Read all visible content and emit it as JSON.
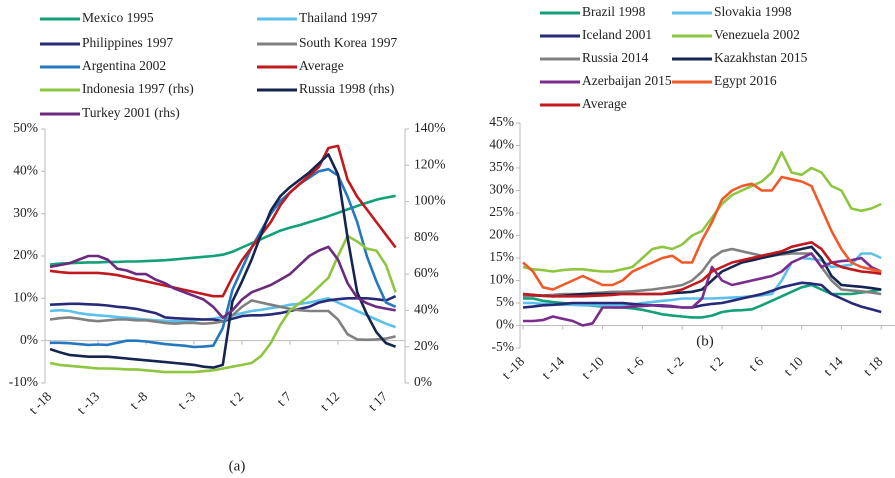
{
  "chart_data": [
    {
      "type": "line",
      "caption": "(a)",
      "categories": [
        "t -18",
        null,
        null,
        null,
        null,
        "t -13",
        null,
        null,
        null,
        null,
        "t -8",
        null,
        null,
        null,
        null,
        "t -3",
        null,
        null,
        null,
        null,
        "t 2",
        null,
        null,
        null,
        null,
        "t 7",
        null,
        null,
        null,
        null,
        "t 12",
        null,
        null,
        null,
        null,
        "t 17",
        null
      ],
      "ylim": [
        -10,
        50
      ],
      "yticks": [
        {
          "value": -10,
          "label": "-10%"
        },
        {
          "value": 0,
          "label": "0%"
        },
        {
          "value": 10,
          "label": "10%"
        },
        {
          "value": 20,
          "label": "20%"
        },
        {
          "value": 30,
          "label": "30%"
        },
        {
          "value": 40,
          "label": "40%"
        },
        {
          "value": 50,
          "label": "50%"
        }
      ],
      "y2lim": [
        0,
        140
      ],
      "y2ticks": [
        {
          "value": 0,
          "label": "0%"
        },
        {
          "value": 20,
          "label": "20%"
        },
        {
          "value": 40,
          "label": "40%"
        },
        {
          "value": 60,
          "label": "60%"
        },
        {
          "value": 80,
          "label": "80%"
        },
        {
          "value": 100,
          "label": "100%"
        },
        {
          "value": 120,
          "label": "120%"
        },
        {
          "value": 140,
          "label": "140%"
        }
      ],
      "series": [
        {
          "name": "Mexico 1995",
          "color": "#12a079",
          "values": [
            18,
            18.2,
            18.3,
            18.4,
            18.5,
            18.5,
            18.6,
            18.6,
            18.7,
            18.7,
            18.8,
            18.9,
            19,
            19.2,
            19.4,
            19.6,
            19.8,
            20,
            20.3,
            21,
            22,
            23,
            24,
            25,
            26,
            26.7,
            27.3,
            28,
            28.7,
            29.4,
            30.2,
            31,
            31.8,
            32.6,
            33.3,
            33.8,
            34.2
          ]
        },
        {
          "name": "Thailand 1997",
          "color": "#5bc0eb",
          "values": [
            7,
            7.2,
            7,
            6.5,
            6.2,
            6,
            5.8,
            5.6,
            5.4,
            5.2,
            5,
            4.8,
            4.7,
            4.6,
            4.6,
            4.8,
            5,
            5.2,
            5.6,
            6,
            6.5,
            7,
            7.3,
            7.7,
            8,
            8.5,
            8.7,
            9,
            9.5,
            10,
            9,
            8,
            7,
            6,
            5,
            4,
            3.2
          ]
        },
        {
          "name": "Philippines 1997",
          "color": "#262a78",
          "values": [
            8.5,
            8.6,
            8.7,
            8.7,
            8.6,
            8.5,
            8.3,
            8,
            7.8,
            7.5,
            7,
            6.5,
            5.5,
            5.3,
            5.2,
            5.1,
            5,
            5,
            4.6,
            5.2,
            5.8,
            6,
            6,
            6.2,
            6.5,
            7,
            7.5,
            8,
            9,
            9.5,
            9.8,
            10,
            10,
            10,
            9.8,
            9.5,
            10.5
          ]
        },
        {
          "name": "South Korea 1997",
          "color": "#808080",
          "values": [
            5,
            5.3,
            5.5,
            5.2,
            4.8,
            4.6,
            4.8,
            5,
            5,
            4.8,
            4.8,
            4.5,
            4.2,
            4,
            4.2,
            4.2,
            4,
            4.2,
            4.5,
            6,
            8,
            9.5,
            9,
            8.5,
            8,
            7.5,
            7.2,
            7,
            7,
            7,
            5,
            1.5,
            0.3,
            0.2,
            0.3,
            0.5,
            1
          ]
        },
        {
          "name": "Argentina 2002",
          "color": "#2577c0",
          "values": [
            -0.5,
            -0.5,
            -0.6,
            -0.8,
            -1,
            -0.9,
            -1,
            -0.5,
            0,
            0,
            -0.2,
            -0.5,
            -0.8,
            -1,
            -1.2,
            -1.5,
            -1.4,
            -1.2,
            3,
            12,
            17,
            22,
            26,
            30,
            33,
            35,
            37,
            38.5,
            40,
            40.5,
            39,
            34,
            28,
            20,
            14,
            9,
            8
          ]
        },
        {
          "name": "Average",
          "color": "#c0191e",
          "values": [
            16.5,
            16.2,
            16,
            16,
            16,
            16,
            15.8,
            15.5,
            15,
            14.5,
            14,
            13.5,
            13,
            12.5,
            12,
            11.5,
            11,
            10.5,
            10.5,
            15,
            19,
            22,
            25,
            28,
            32,
            35,
            37,
            39,
            41,
            45.5,
            46,
            38,
            34,
            31,
            28,
            25,
            22
          ]
        },
        {
          "name": "Indonesia 1997 (rhs)",
          "color": "#8dc63f",
          "axis": "y2",
          "values": [
            11,
            10,
            9.5,
            9,
            8.5,
            8,
            8,
            7.8,
            7.5,
            7.5,
            7,
            6.5,
            6,
            6,
            6,
            6,
            6.5,
            7,
            8,
            9,
            10,
            11,
            15,
            22,
            32,
            40,
            44,
            48,
            53,
            58,
            70,
            81,
            78,
            74,
            73,
            65,
            50
          ]
        },
        {
          "name": "Russia 1998 (rhs)",
          "color": "#16254f",
          "axis": "y2",
          "values": [
            18.7,
            17,
            15.5,
            15,
            14.5,
            14.5,
            14.5,
            14,
            13.5,
            13,
            12.5,
            12,
            11.5,
            11,
            10.5,
            10,
            9,
            8.5,
            10,
            45,
            56,
            68,
            82,
            95,
            103,
            108,
            112,
            116,
            121,
            126,
            115,
            80,
            50,
            38,
            28,
            22,
            20
          ]
        },
        {
          "name": "Turkey 2001 (rhs)",
          "color": "#6b2a7d",
          "axis": "y2",
          "values": [
            64,
            65,
            66,
            68,
            70,
            70,
            68,
            63,
            62,
            60,
            60,
            57,
            55,
            52,
            50,
            48,
            46,
            42,
            36,
            40,
            46,
            50,
            52,
            54,
            57,
            60,
            65,
            70,
            73,
            75,
            68,
            55,
            47,
            44,
            42,
            41,
            40
          ]
        }
      ]
    },
    {
      "type": "line",
      "caption": "(b)",
      "categories": [
        "t -18",
        null,
        null,
        null,
        "t -14",
        null,
        null,
        null,
        "t -10",
        null,
        null,
        null,
        "t -6",
        null,
        null,
        null,
        "t -2",
        null,
        null,
        null,
        "t 2",
        null,
        null,
        null,
        "t 6",
        null,
        null,
        null,
        "t 10",
        null,
        null,
        null,
        "t 14",
        null,
        null,
        null,
        "t 18"
      ],
      "ylim": [
        -5,
        45
      ],
      "yticks": [
        {
          "value": -5,
          "label": "-5%"
        },
        {
          "value": 0,
          "label": "0%"
        },
        {
          "value": 5,
          "label": "5%"
        },
        {
          "value": 10,
          "label": "10%"
        },
        {
          "value": 15,
          "label": "15%"
        },
        {
          "value": 20,
          "label": "20%"
        },
        {
          "value": 25,
          "label": "25%"
        },
        {
          "value": 30,
          "label": "30%"
        },
        {
          "value": 35,
          "label": "35%"
        },
        {
          "value": 40,
          "label": "40%"
        },
        {
          "value": 45,
          "label": "45%"
        }
      ],
      "series": [
        {
          "name": "Brazil 1998",
          "color": "#12a079",
          "values": [
            6,
            6,
            5.5,
            5.2,
            5,
            4.8,
            4.6,
            4.4,
            4.2,
            4,
            4,
            3.8,
            3.5,
            3,
            2.5,
            2.2,
            2,
            1.8,
            1.8,
            2.2,
            3,
            3.3,
            3.4,
            3.6,
            4.5,
            5.5,
            6.5,
            7.5,
            8.5,
            9,
            8,
            7,
            7,
            7,
            7.3,
            7.6,
            8
          ]
        },
        {
          "name": "Slovakia 1998",
          "color": "#5bc0eb",
          "values": [
            5,
            5,
            4.8,
            4.7,
            4.6,
            4.6,
            4.5,
            4.5,
            4.5,
            4.5,
            4.5,
            4.6,
            5,
            5.2,
            5.5,
            5.7,
            6,
            6,
            6,
            6,
            6.1,
            6.2,
            6.3,
            6.5,
            6.7,
            7,
            10,
            14,
            15,
            14.8,
            14.5,
            13,
            13.2,
            13.5,
            16,
            16,
            15
          ]
        },
        {
          "name": "Iceland 2001",
          "color": "#262a78",
          "values": [
            4,
            4.2,
            4.5,
            4.6,
            4.8,
            5,
            5,
            5,
            5,
            5,
            5,
            4.8,
            4.6,
            4.5,
            4.3,
            4.2,
            4,
            4,
            4.5,
            4.8,
            5,
            5.5,
            6,
            6.5,
            7,
            7.7,
            8.5,
            9,
            9.5,
            9.3,
            9,
            7,
            6,
            5,
            4.2,
            3.6,
            3
          ]
        },
        {
          "name": "Venezuela 2002",
          "color": "#8dc63f",
          "values": [
            13,
            12.5,
            12.3,
            12,
            12.3,
            12.5,
            12.5,
            12.2,
            12,
            12,
            12.5,
            13,
            15,
            17,
            17.5,
            17,
            18,
            20,
            21,
            24,
            27,
            29,
            30,
            31,
            32,
            34,
            38.5,
            34,
            33.5,
            35,
            34,
            31,
            30,
            26,
            25.5,
            26,
            27
          ]
        },
        {
          "name": "Russia 2014",
          "color": "#808080",
          "values": [
            6.5,
            6.6,
            6.7,
            6.8,
            7,
            7,
            7,
            7.2,
            7.3,
            7.5,
            7.5,
            7.6,
            7.8,
            8,
            8.3,
            8.6,
            9,
            10,
            12,
            15,
            16.5,
            17,
            16.5,
            16,
            15.5,
            15.5,
            15.8,
            16,
            16,
            16,
            13,
            10,
            8,
            7.8,
            7.6,
            7.3,
            7
          ]
        },
        {
          "name": "Kazakhstan 2015",
          "color": "#16254f",
          "values": [
            7,
            6.8,
            6.6,
            6.5,
            6.6,
            6.8,
            7,
            7,
            7,
            7,
            7,
            7,
            7,
            7,
            7,
            7.2,
            7.3,
            7.5,
            8,
            10,
            12,
            13,
            14,
            14.5,
            15,
            15.5,
            16,
            16.5,
            17,
            17.5,
            15,
            11,
            9,
            8.8,
            8.6,
            8.3,
            8
          ]
        },
        {
          "name": "Azerbaijan 2015",
          "color": "#7b2d8e",
          "values": [
            1,
            1,
            1.2,
            2,
            1.5,
            1,
            0,
            0.5,
            4,
            4,
            4,
            4.2,
            4.3,
            4.5,
            4.5,
            4.3,
            4,
            4,
            6,
            13,
            10,
            9,
            9.5,
            10,
            10.5,
            11,
            12,
            14,
            15,
            16,
            13,
            14,
            14.3,
            14.5,
            15,
            13,
            12
          ]
        },
        {
          "name": "Egypt 2016",
          "color": "#f05a28",
          "values": [
            14,
            12,
            8.5,
            8,
            9,
            10,
            11,
            10,
            9,
            9,
            10,
            12,
            13,
            14,
            15,
            15.5,
            14,
            14,
            19,
            23,
            28,
            30,
            31,
            31.5,
            30,
            30,
            33,
            32.5,
            32,
            31,
            26,
            21,
            17,
            14,
            13,
            12.5,
            12
          ]
        },
        {
          "name": "Average",
          "color": "#c0191e",
          "values": [
            7,
            6.8,
            6.6,
            6.5,
            6.5,
            6.5,
            6.5,
            6.6,
            6.7,
            6.8,
            7,
            7,
            7,
            7,
            7,
            7.5,
            8,
            9,
            10,
            12,
            13,
            14,
            14.5,
            15,
            15.5,
            16,
            16.5,
            17.5,
            18,
            18.5,
            17,
            14,
            13,
            12.5,
            12,
            11.8,
            11.5
          ]
        }
      ]
    }
  ]
}
